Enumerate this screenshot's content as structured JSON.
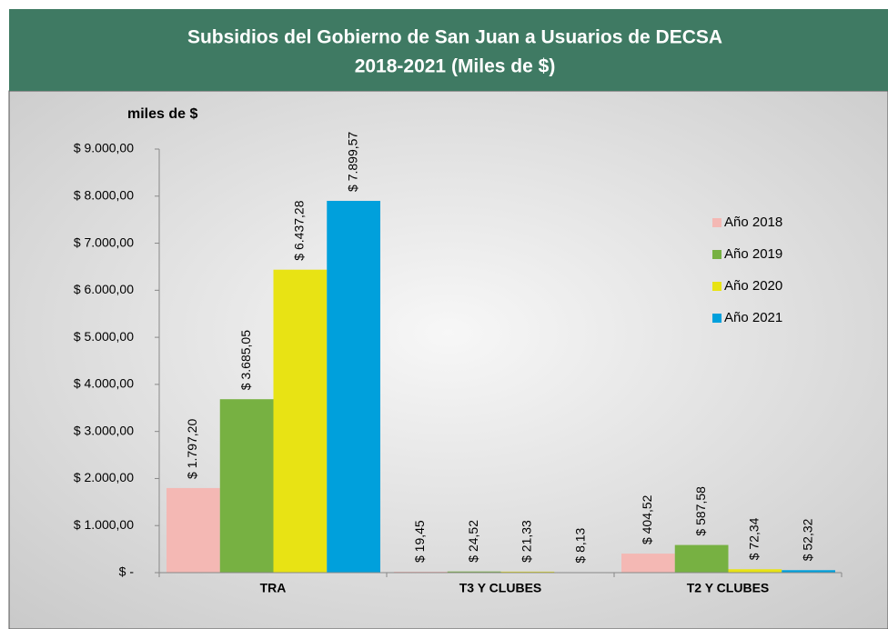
{
  "chart_data": {
    "type": "bar",
    "title": "Subsidios del Gobierno de San Juan a Usuarios de DECSA",
    "subtitle": "2018-2021 (Miles de $)",
    "ylabel": "miles de $",
    "categories": [
      "TRA",
      "T3 Y CLUBES",
      "T2 Y CLUBES"
    ],
    "series": [
      {
        "name": "Año 2018",
        "color": "#f4b8b4",
        "values": [
          1797.2,
          19.45,
          404.52
        ],
        "value_labels": [
          "$ 1.797,20",
          "$ 19,45",
          "$ 404,52"
        ]
      },
      {
        "name": "Año 2019",
        "color": "#77b142",
        "values": [
          3685.05,
          24.52,
          587.58
        ],
        "value_labels": [
          "$ 3.685,05",
          "$ 24,52",
          "$ 587,58"
        ]
      },
      {
        "name": "Año 2020",
        "color": "#e8e314",
        "values": [
          6437.28,
          21.33,
          72.34
        ],
        "value_labels": [
          "$ 6.437,28",
          "$ 21,33",
          "$ 72,34"
        ]
      },
      {
        "name": "Año 2021",
        "color": "#00a0dc",
        "values": [
          7899.57,
          8.13,
          52.32
        ],
        "value_labels": [
          "$ 7.899,57",
          "$ 8,13",
          "$ 52,32"
        ]
      }
    ],
    "ylim": [
      0,
      9000
    ],
    "yticks": [
      {
        "value": 0,
        "label": "$ -"
      },
      {
        "value": 1000,
        "label": "$ 1.000,00"
      },
      {
        "value": 2000,
        "label": "$ 2.000,00"
      },
      {
        "value": 3000,
        "label": "$ 3.000,00"
      },
      {
        "value": 4000,
        "label": "$ 4.000,00"
      },
      {
        "value": 5000,
        "label": "$ 5.000,00"
      },
      {
        "value": 6000,
        "label": "$ 6.000,00"
      },
      {
        "value": 7000,
        "label": "$ 7.000,00"
      },
      {
        "value": 8000,
        "label": "$ 8.000,00"
      },
      {
        "value": 9000,
        "label": "$ 9.000,00"
      }
    ],
    "grid": false,
    "legend": "right"
  }
}
